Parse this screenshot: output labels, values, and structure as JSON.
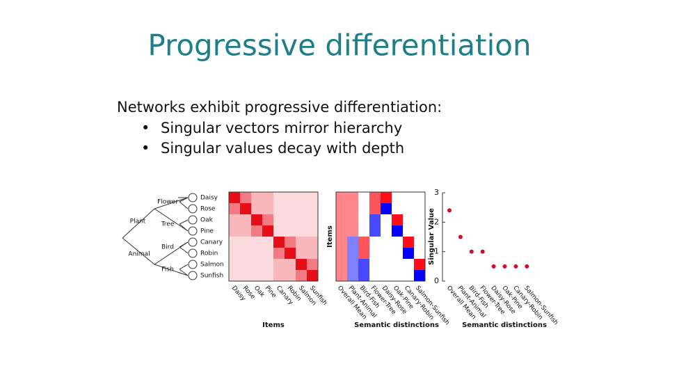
{
  "title": "Progressive differentiation",
  "intro": "Networks exhibit progressive differentiation:",
  "bullets": [
    "Singular vectors mirror hierarchy",
    "Singular values decay with depth"
  ],
  "tree": {
    "classes": [
      "Plant",
      "Animal"
    ],
    "subclasses": [
      "Flower",
      "Tree",
      "Bird",
      "Fish"
    ]
  },
  "items": [
    "Daisy",
    "Rose",
    "Oak",
    "Pine",
    "Canary",
    "Robin",
    "Salmon",
    "Sunfish"
  ],
  "similarity": {
    "xlabel": "Items",
    "values": [
      [
        1,
        0.55,
        0.3,
        0.3,
        0.15,
        0.15,
        0.15,
        0.15
      ],
      [
        0.55,
        1,
        0.3,
        0.3,
        0.15,
        0.15,
        0.15,
        0.15
      ],
      [
        0.3,
        0.3,
        1,
        0.55,
        0.15,
        0.15,
        0.15,
        0.15
      ],
      [
        0.3,
        0.3,
        0.55,
        1,
        0.15,
        0.15,
        0.15,
        0.15
      ],
      [
        0.15,
        0.15,
        0.15,
        0.15,
        1,
        0.55,
        0.3,
        0.3
      ],
      [
        0.15,
        0.15,
        0.15,
        0.15,
        0.55,
        1,
        0.3,
        0.3
      ],
      [
        0.15,
        0.15,
        0.15,
        0.15,
        0.3,
        0.3,
        1,
        0.55
      ],
      [
        0.15,
        0.15,
        0.15,
        0.15,
        0.3,
        0.3,
        0.55,
        1
      ]
    ]
  },
  "svd_vectors": {
    "ylabel": "Items",
    "xlabel": "Semantic distinctions",
    "columns": [
      "Overall Mean",
      "Plant-Animal",
      "Bird-Fish",
      "Flower-Tree",
      "Daisy-Rose",
      "Oak-Pine",
      "Canary-Robin",
      "Salmon-Sunfish"
    ],
    "values": [
      [
        0.35,
        0.35,
        0,
        0.5,
        0.7,
        0,
        0,
        0
      ],
      [
        0.35,
        0.35,
        0,
        0.5,
        -0.7,
        0,
        0,
        0
      ],
      [
        0.35,
        0.35,
        0,
        -0.5,
        0,
        0.7,
        0,
        0
      ],
      [
        0.35,
        0.35,
        0,
        -0.5,
        0,
        -0.7,
        0,
        0
      ],
      [
        0.35,
        -0.35,
        0.5,
        0,
        0,
        0,
        0.7,
        0
      ],
      [
        0.35,
        -0.35,
        0.5,
        0,
        0,
        0,
        -0.7,
        0
      ],
      [
        0.35,
        -0.35,
        -0.5,
        0,
        0,
        0,
        0,
        0.7
      ],
      [
        0.35,
        -0.35,
        -0.5,
        0,
        0,
        0,
        0,
        -0.7
      ]
    ]
  },
  "chart_data": {
    "type": "scatter",
    "ylabel": "Singular Value",
    "xlabel": "Semantic distinctions",
    "categories": [
      "Overall Mean",
      "Plant-Animal",
      "Bird-Fish",
      "Flower-Tree",
      "Daisy-Rose",
      "Oak-Pine",
      "Canary-Robin",
      "Salmon-Sunfish"
    ],
    "values": [
      2.4,
      1.5,
      1.0,
      1.0,
      0.5,
      0.5,
      0.5,
      0.5
    ],
    "ylim": [
      0,
      3
    ],
    "yticks": [
      0,
      1,
      2,
      3
    ],
    "color": "#d0102a"
  }
}
